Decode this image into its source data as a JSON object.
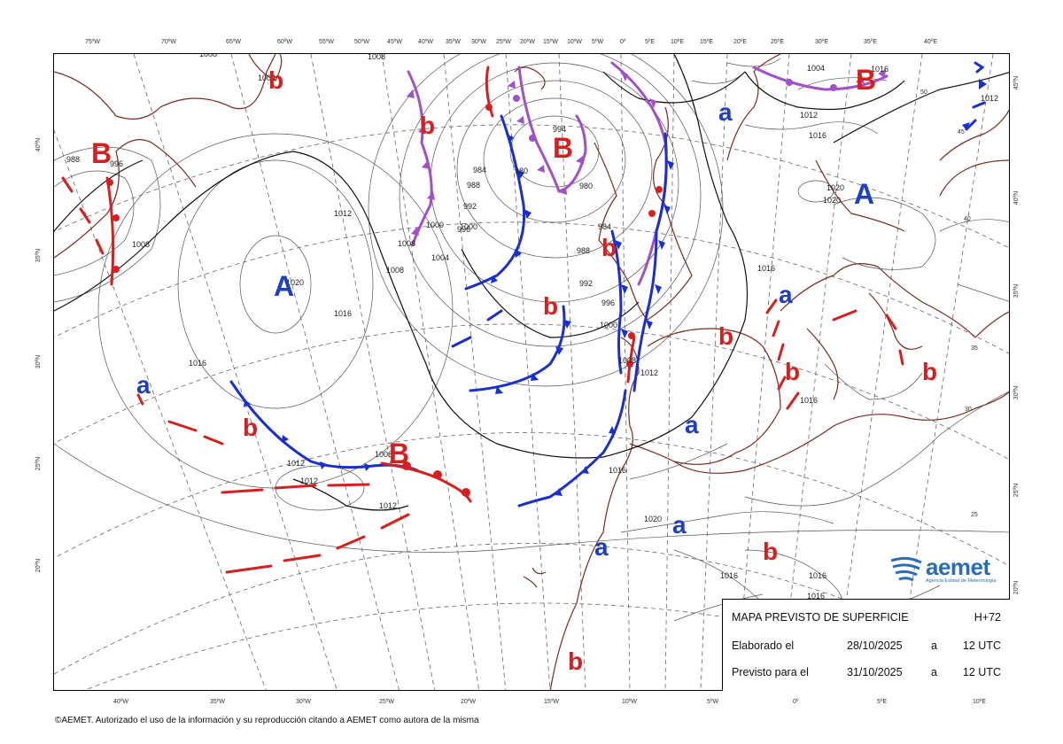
{
  "colors": {
    "high": "#1f3fbf",
    "low": "#d62020",
    "cold_front": "#1a2fd0",
    "warm_front": "#d62020",
    "occluded": "#a050c8",
    "coast": "#7a2a20",
    "isobar": "#555555"
  },
  "top_ticks": [
    "75ºW",
    "70ºW",
    "65ºW",
    "60ºW",
    "55ºW",
    "50ºW",
    "45ºW",
    "40ºW",
    "35ºW",
    "30ºW",
    "25ºW",
    "20ºW",
    "15ºW",
    "10ºW",
    "5ºW",
    "0º",
    "5ºE",
    "10ºE",
    "15ºE",
    "20ºE",
    "25ºE",
    "30ºE",
    "35ºE",
    "40ºE"
  ],
  "bottom_ticks": [
    "40ºW",
    "35ºW",
    "30ºW",
    "25ºW",
    "20ºW",
    "15ºW",
    "10ºW",
    "5ºW",
    "0º",
    "5ºE",
    "10ºE"
  ],
  "left_ticks": [
    "40ºN",
    "35ºN",
    "30ºN",
    "25ºN",
    "20ºN"
  ],
  "right_ticks": [
    "45ºN",
    "40ºN",
    "35ºN",
    "30ºN",
    "25ºN",
    "20ºN"
  ],
  "inner_ticks": [
    "50",
    "45",
    "40",
    "35",
    "30",
    "25"
  ],
  "pressure_systems": [
    {
      "letter": "B",
      "kind": "low"
    },
    {
      "letter": "b",
      "kind": "low"
    },
    {
      "letter": "b",
      "kind": "low"
    },
    {
      "letter": "B",
      "kind": "low"
    },
    {
      "letter": "B",
      "kind": "low"
    },
    {
      "letter": "a",
      "kind": "high"
    },
    {
      "letter": "A",
      "kind": "high"
    },
    {
      "letter": "A",
      "kind": "high"
    },
    {
      "letter": "b",
      "kind": "low"
    },
    {
      "letter": "b",
      "kind": "low"
    },
    {
      "letter": "a",
      "kind": "high"
    },
    {
      "letter": "b",
      "kind": "low"
    },
    {
      "letter": "b",
      "kind": "low"
    },
    {
      "letter": "b",
      "kind": "low"
    },
    {
      "letter": "a",
      "kind": "high"
    },
    {
      "letter": "b",
      "kind": "low"
    },
    {
      "letter": "B",
      "kind": "low"
    },
    {
      "letter": "a",
      "kind": "high"
    },
    {
      "letter": "a",
      "kind": "high"
    },
    {
      "letter": "a",
      "kind": "high"
    },
    {
      "letter": "b",
      "kind": "low"
    },
    {
      "letter": "b",
      "kind": "low"
    }
  ],
  "isobar_labels": [
    "1008",
    "1008",
    "988",
    "996",
    "1004",
    "1008",
    "1000",
    "1008",
    "1012",
    "1008",
    "1020",
    "1016",
    "1016",
    "1004",
    "1000",
    "996",
    "984",
    "988",
    "992",
    "980",
    "994",
    "980",
    "1012",
    "1004",
    "1016",
    "1016",
    "1020",
    "1020",
    "996",
    "984",
    "988",
    "992",
    "1000",
    "1008",
    "1012",
    "1016",
    "1016",
    "1012",
    "1012",
    "1008",
    "1012",
    "1012",
    "1016",
    "1020",
    "1016",
    "1016",
    "1016"
  ],
  "info": {
    "title": "MAPA PREVISTO DE SUPERFICIE",
    "horizon": "H+72",
    "elaborated_label": "Elaborado el",
    "elaborated_date": "28/10/2025",
    "elaborated_a": "a",
    "elaborated_time": "12 UTC",
    "forecast_label": "Previsto para el",
    "forecast_date": "31/10/2025",
    "forecast_a": "a",
    "forecast_time": "12 UTC"
  },
  "logo": {
    "name": "aemet",
    "subtitle": "Agencia Estatal de Meteorología"
  },
  "copyright": "©AEMET. Autorizado el uso de la información y su reproducción citando a AEMET como autora de la misma"
}
